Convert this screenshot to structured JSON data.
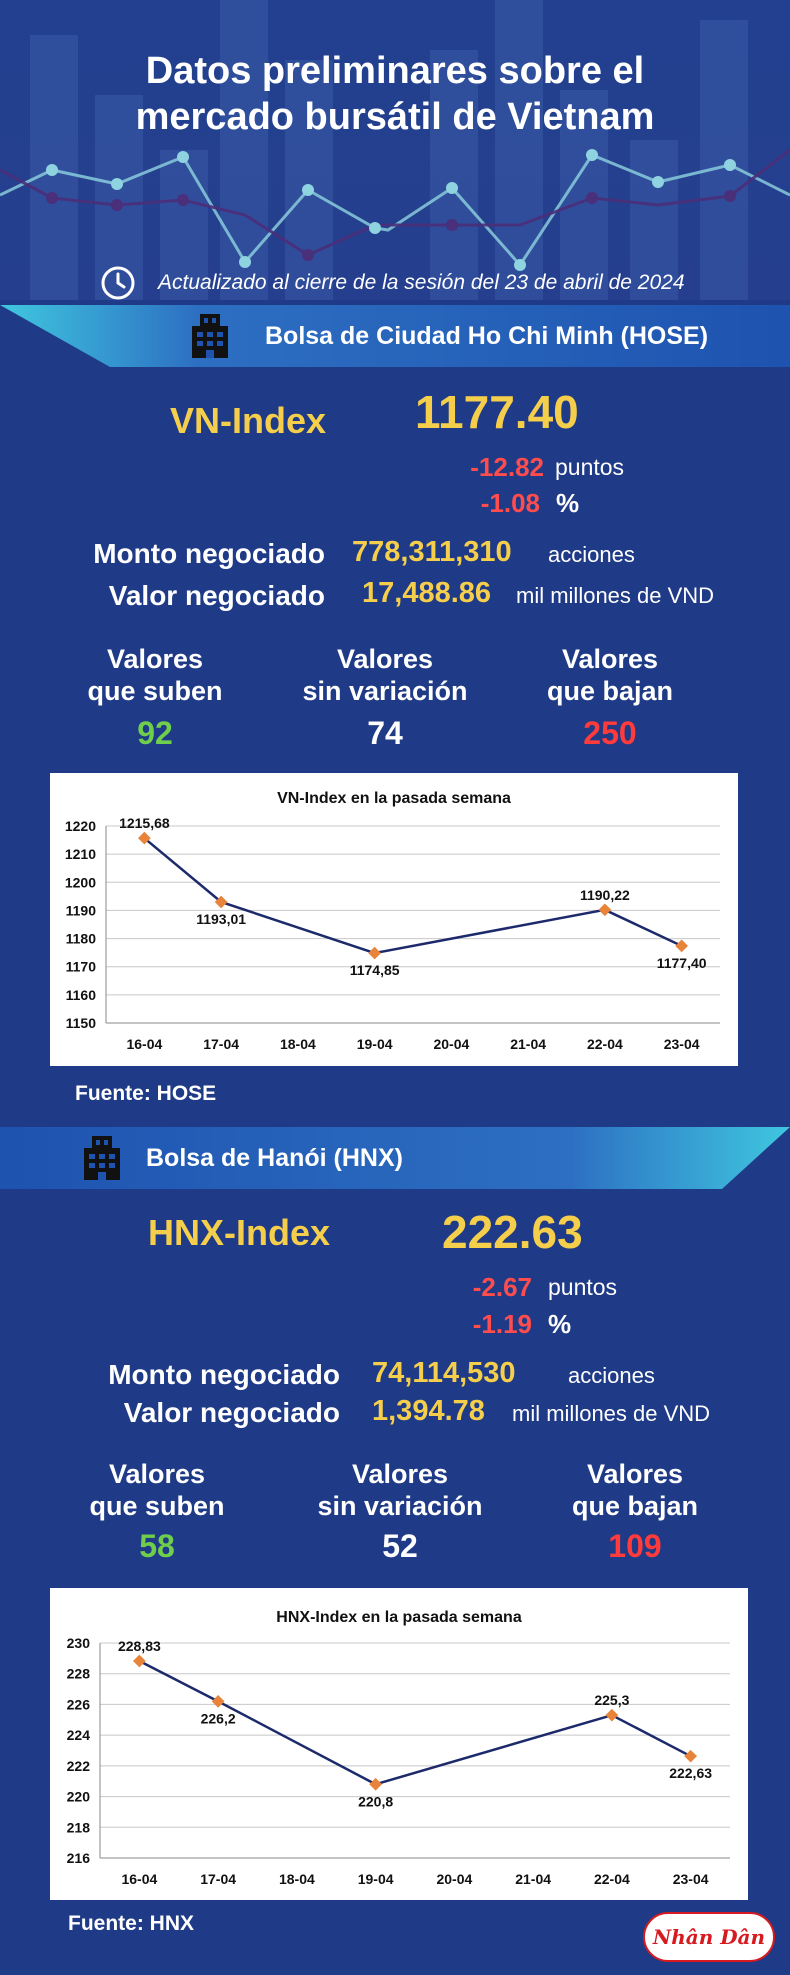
{
  "header": {
    "title_line1": "Datos preliminares sobre el",
    "title_line2": "mercado bursátil de Vietnam",
    "update_text": "Actualizado al cierre de la sesión del 23 de abril de 2024",
    "update_icon": "clock-icon"
  },
  "hose": {
    "banner": "Bolsa de Ciudad Ho Chi Minh (HOSE)",
    "banner_icon": "building-icon",
    "index_name": "VN-Index",
    "index_value": "1177.40",
    "change_points": "-12.82",
    "points_unit": "puntos",
    "change_percent": "-1.08",
    "percent_unit": "%",
    "volume_label": "Monto negociado",
    "volume_value": "778,311,310",
    "volume_unit": "acciones",
    "value_label": "Valor negociado",
    "value_value": "17,488.86",
    "value_unit": "mil millones de VND",
    "stats": [
      {
        "title1": "Valores",
        "title2": "que suben",
        "num": "92"
      },
      {
        "title1": "Valores",
        "title2": "sin variación",
        "num": "74"
      },
      {
        "title1": "Valores",
        "title2": "que bajan",
        "num": "250"
      }
    ],
    "source": "Fuente: HOSE"
  },
  "hnx": {
    "banner": "Bolsa de Hanói (HNX)",
    "banner_icon": "building-icon",
    "index_name": "HNX-Index",
    "index_value": "222.63",
    "change_points": "-2.67",
    "points_unit": "puntos",
    "change_percent": "-1.19",
    "percent_unit": "%",
    "volume_label": "Monto negociado",
    "volume_value": "74,114,530",
    "volume_unit": "acciones",
    "value_label": "Valor negociado",
    "value_value": "1,394.78",
    "value_unit": "mil millones de VND",
    "stats": [
      {
        "title1": "Valores",
        "title2": "que suben",
        "num": "58"
      },
      {
        "title1": "Valores",
        "title2": "sin variación",
        "num": "52"
      },
      {
        "title1": "Valores",
        "title2": "que bajan",
        "num": "109"
      }
    ],
    "source": "Fuente:  HNX"
  },
  "logo": {
    "text": "Nhân Dân"
  },
  "colors": {
    "background": "#1f3a86",
    "accent_yellow": "#f5cf4b",
    "down_red": "#ff3b3b",
    "up_green": "#6fcf4d",
    "line_navy": "#1c2a6b",
    "marker_orange": "#e8843a",
    "banner_cyan": "#4fd0e4"
  },
  "chart_data": [
    {
      "type": "line",
      "title": "VN-Index en la pasada semana",
      "categories": [
        "16-04",
        "17-04",
        "18-04",
        "19-04",
        "20-04",
        "21-04",
        "22-04",
        "23-04"
      ],
      "series": [
        {
          "values": [
            1215.68,
            1193.01,
            null,
            1174.85,
            null,
            null,
            1190.22,
            1177.4
          ]
        }
      ],
      "data_labels": [
        "1215,68",
        "1193,01",
        "",
        "1174,85",
        "",
        "",
        "1190,22",
        "1177,40"
      ],
      "yticks": [
        "1220",
        "1210",
        "1200",
        "1190",
        "1180",
        "1170",
        "1160",
        "1150"
      ],
      "ylim": [
        1150,
        1220
      ],
      "grid": true,
      "xlabel": "",
      "ylabel": ""
    },
    {
      "type": "line",
      "title": "HNX-Index en la pasada semana",
      "categories": [
        "16-04",
        "17-04",
        "18-04",
        "19-04",
        "20-04",
        "21-04",
        "22-04",
        "23-04"
      ],
      "series": [
        {
          "values": [
            228.83,
            226.2,
            null,
            220.8,
            null,
            null,
            225.3,
            222.63
          ]
        }
      ],
      "data_labels": [
        "228,83",
        "226,2",
        "",
        "220,8",
        "",
        "",
        "225,3",
        "222,63"
      ],
      "yticks": [
        "230",
        "228",
        "226",
        "224",
        "222",
        "220",
        "218",
        "216"
      ],
      "ylim": [
        216,
        230
      ],
      "grid": true,
      "xlabel": "",
      "ylabel": ""
    }
  ]
}
